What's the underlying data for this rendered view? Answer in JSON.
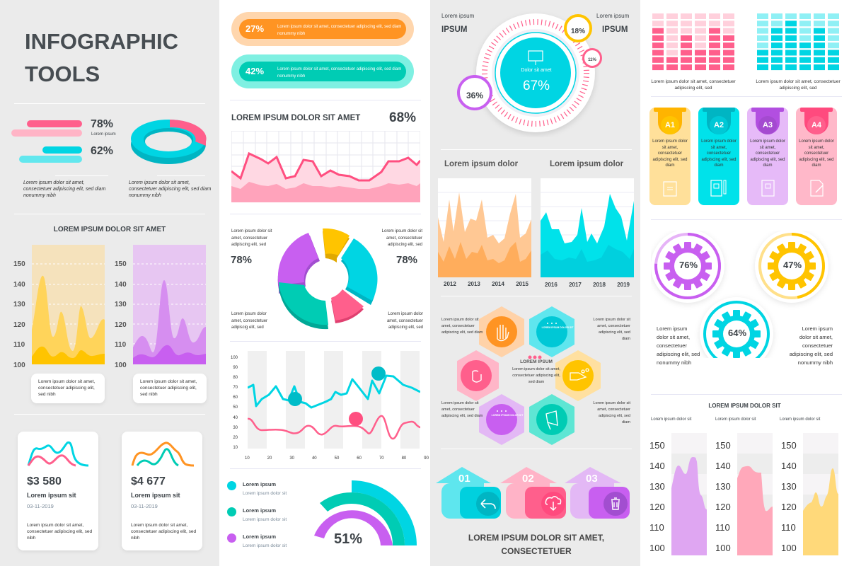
{
  "title": {
    "line1": "INFOGRAPHIC",
    "line2": "TOOLS"
  },
  "colors": {
    "pink": "#ff5f8c",
    "cyan": "#00d5e3",
    "teal": "#00ccb4",
    "orange": "#ff9423",
    "yellow": "#ffc400",
    "purple": "#c85ff0"
  },
  "col1": {
    "bars": [
      {
        "value": "78%",
        "label": "Lorem ipsum"
      },
      {
        "value": "62%"
      }
    ],
    "ring_captions": [
      "Lorem ipsum dolor sit amet, consectetuer adipiscing elit, sed diam nonummy nibh",
      "Lorem ipsum dolor sit amet, consectetuer adipiscing elit, sed diam nonummy nibh"
    ],
    "section_title": "LOREM IPSUM DOLOR SIT AMET",
    "y_ticks": [
      "150",
      "140",
      "130",
      "120",
      "110",
      "100"
    ],
    "area_captions": [
      "Lorem ipsum dolor sit amet, consectetuer adipiscing elit, sed nibh",
      "Lorem ipsum dolor sit amet, consectetuer adipiscing elit, sed nibh"
    ],
    "cards": [
      {
        "amount": "$3 580",
        "title": "Lorem ipsum sit",
        "date": "03-11-2019",
        "text": "Lorem ipsum dolor sit amet, consectetuer adipiscing elit, sed nibh"
      },
      {
        "amount": "$4 677",
        "title": "Lorem ipsum sit",
        "date": "03-11-2019",
        "text": "Lorem ipsum dolor sit amet, consectetuer adipiscing elit, sed nibh"
      }
    ]
  },
  "col2": {
    "pills": [
      {
        "value": "27%",
        "text": "Lorem ipsum dolor sit amet, consectetuer adipiscing elit, sed diam nonummy nibh"
      },
      {
        "value": "42%",
        "text": "Lorem ipsum dolor sit amet, consectetuer adipiscing elit, sed diam nonummy nibh"
      }
    ],
    "grid_title": "LOREM IPSUM DOLOR SIT AMET",
    "grid_value": "68%",
    "donut": {
      "left_text": "Lorem ipsum dolor sit amet, consectetuer adipiscing elit, sed",
      "left_value": "78%",
      "right_text": "Lorem ipsum dolor sit amet, consectetuer adipiscing elit, sed",
      "right_value": "78%",
      "bl_text": "Lorem ipsum dolor amet, consectetuer adipiscig elit, sed",
      "br_text": "Lorem ipsum dolor amet, consectetuer adipiscing elit, sed"
    },
    "line_y_ticks": [
      "100",
      "90",
      "80",
      "70",
      "60",
      "50",
      "40",
      "30",
      "20",
      "10"
    ],
    "line_x_ticks": [
      "10",
      "20",
      "30",
      "40",
      "50",
      "60",
      "70",
      "80",
      "90"
    ],
    "legend": [
      {
        "title": "Lorem ipsum",
        "sub": "Lorem ipsum dolor sit"
      },
      {
        "title": "Lorem ipsum",
        "sub": "Lorem ipsum dolor sit"
      },
      {
        "title": "Lorem ipsum",
        "sub": "Lorem ipsum dolor sit"
      }
    ],
    "gauge_value": "51%"
  },
  "col3": {
    "circle": {
      "left_small": "Lorem ipsum",
      "left_big": "IPSUM",
      "right_small": "Lorem ipsum",
      "right_big": "IPSUM",
      "center_label": "Dolor sit amet",
      "center_value": "67%",
      "b1": "18%",
      "b2": "11%",
      "b3": "36%"
    },
    "area_titles": [
      "Lorem ipsum dolor",
      "Lorem ipsum dolor"
    ],
    "years_a": [
      "2012",
      "2013",
      "2014",
      "2015"
    ],
    "years_b": [
      "2016",
      "2017",
      "2018",
      "2019"
    ],
    "hex": {
      "side_text": "Lorem ipsum dolor sit amet, consectetuer adipiscing elit, sed diam",
      "center_title": "LOREM IPSUM",
      "center_text": "Lorem ipsum dolor sit amet, consectetuer adipiscing elit, sed diam",
      "inner_label": "LOREM IPSUM DOLOR SIT"
    },
    "arrows": [
      "01",
      "02",
      "03"
    ],
    "footer": "LOREM IPSUM DOLOR SIT AMET, CONSECTETUER"
  },
  "col4": {
    "bar_captions": [
      "Lorem ipsum dolor sit amet, consectetuer adipiscing elit, sed",
      "Lorem ipsum dolor sit amet, consectetuer adipiscing elit, sed"
    ],
    "tabs": [
      {
        "label": "A1",
        "text": "Lorem ipsum dolor sit amet, consectetuer adipiscing elit, sed diam"
      },
      {
        "label": "A2",
        "text": "Lorem ipsum dolor sit amet, consectetuer adipiscing elit, sed diam"
      },
      {
        "label": "A3",
        "text": "Lorem ipsum dolor sit amet, consectetuer adipiscing elit, sed diam"
      },
      {
        "label": "A4",
        "text": "Lorem ipsum dolor sit amet, consectetuer adipiscing elit, sed diam"
      }
    ],
    "gears": [
      "76%",
      "47%",
      "64%"
    ],
    "gear_text_left": "Lorem ipsum dolor sit amet, consectetuer adipiscing elit, sed nonummy nibh",
    "gear_text_right": "Lorem ipsum dolor sit amet, consectetuer adipiscing elit, sed nonummy nibh",
    "bottom_title": "LOREM IPSUM DOLOR SIT",
    "bottom_labels": [
      "Lorem ipsum dolor sit",
      "Lorem ipsum dolor sit",
      "Lorem ipsum dolor sit"
    ],
    "y_ticks": [
      "150",
      "140",
      "130",
      "120",
      "110",
      "100"
    ]
  },
  "chart_data": [
    {
      "type": "bar",
      "title": "Progress bars",
      "categories": [
        "Pink",
        "Cyan"
      ],
      "values": [
        78,
        62
      ]
    },
    {
      "type": "pie",
      "title": "3D ring",
      "categories": [
        "Pink",
        "Cyan"
      ],
      "values": [
        22,
        78
      ]
    },
    {
      "type": "area",
      "title": "LOREM IPSUM DOLOR SIT AMET",
      "ylim": [
        100,
        150
      ],
      "series": [
        {
          "name": "Yellow",
          "values": [
            110,
            143,
            112,
            124,
            106,
            127,
            111,
            120
          ]
        },
        {
          "name": "Purple",
          "values": [
            105,
            113,
            103,
            141,
            110,
            120,
            108,
            117
          ]
        }
      ]
    },
    {
      "type": "line",
      "title": "LOREM IPSUM DOLOR SIT AMET",
      "value_label": "68%",
      "series": [
        {
          "name": "Pink",
          "values": [
            70,
            62,
            80,
            76,
            73,
            77,
            63,
            64,
            76,
            75,
            66,
            69,
            67,
            66,
            62,
            62,
            68,
            74,
            74,
            76,
            72,
            78
          ]
        }
      ]
    },
    {
      "type": "pie",
      "title": "Exploded donut",
      "categories": [
        "Yellow",
        "Cyan",
        "Pink",
        "Teal",
        "Purple"
      ],
      "values": [
        10,
        27,
        12,
        26,
        25
      ]
    },
    {
      "type": "line",
      "x": [
        10,
        20,
        30,
        40,
        50,
        60,
        70,
        80,
        90
      ],
      "ylim": [
        10,
        100
      ],
      "series": [
        {
          "name": "Cyan",
          "values": [
            68,
            62,
            60,
            55,
            65,
            78,
            80,
            80,
            70
          ]
        },
        {
          "name": "Pink",
          "values": [
            42,
            31,
            30,
            29,
            38,
            35,
            42,
            37,
            33
          ]
        }
      ]
    },
    {
      "type": "pie",
      "title": "Radial gauge",
      "value": 51,
      "series": [
        "Cyan",
        "Teal",
        "Purple"
      ]
    },
    {
      "type": "pie",
      "title": "Central circle",
      "values": {
        "center": 67,
        "b1": 18,
        "b2": 11,
        "b3": 36
      }
    },
    {
      "type": "area",
      "title": "Lorem ipsum dolor",
      "categories": [
        "2012",
        "2013",
        "2014",
        "2015"
      ]
    },
    {
      "type": "area",
      "title": "Lorem ipsum dolor",
      "categories": [
        "2016",
        "2017",
        "2018",
        "2019"
      ]
    },
    {
      "type": "bar",
      "title": "Pink block bars",
      "values": [
        6,
        2,
        5,
        3,
        6,
        5
      ],
      "max": 8
    },
    {
      "type": "bar",
      "title": "Cyan block bars",
      "values": [
        3,
        6,
        7,
        4,
        6,
        3
      ],
      "max": 8
    },
    {
      "type": "pie",
      "title": "Gears",
      "categories": [
        "Purple",
        "Yellow",
        "Cyan"
      ],
      "values": [
        76,
        47,
        64
      ]
    },
    {
      "type": "area",
      "title": "LOREM IPSUM DOLOR SIT",
      "ylim": [
        100,
        150
      ],
      "series": [
        {
          "name": "Purple",
          "values": [
            127,
            138,
            134,
            143,
            142,
            125,
            117
          ]
        },
        {
          "name": "Pink",
          "values": [
            132,
            138,
            138,
            135,
            135,
            116,
            118
          ]
        },
        {
          "name": "Yellow",
          "values": [
            116,
            120,
            126,
            117,
            124,
            137,
            124
          ]
        }
      ]
    }
  ]
}
